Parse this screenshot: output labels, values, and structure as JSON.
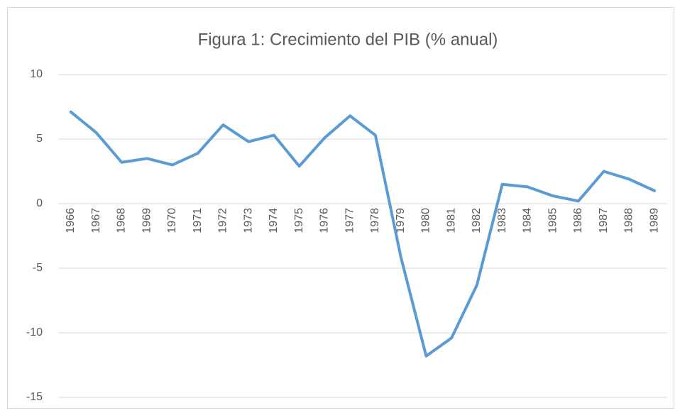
{
  "chart_data": {
    "type": "line",
    "title": "Figura 1: Crecimiento del PIB (% anual)",
    "categories": [
      "1966",
      "1967",
      "1968",
      "1969",
      "1970",
      "1971",
      "1972",
      "1973",
      "1974",
      "1975",
      "1976",
      "1977",
      "1978",
      "1979",
      "1980",
      "1981",
      "1982",
      "1983",
      "1984",
      "1985",
      "1986",
      "1987",
      "1988",
      "1989"
    ],
    "values": [
      7.1,
      5.5,
      3.2,
      3.5,
      3.0,
      3.9,
      6.1,
      4.8,
      5.3,
      2.9,
      5.1,
      6.8,
      5.3,
      -4.1,
      -11.8,
      -10.4,
      -6.3,
      1.5,
      1.3,
      0.6,
      0.2,
      2.5,
      1.9,
      1.0
    ],
    "color": "#5b9bd5",
    "ylim": [
      -15,
      10
    ],
    "yticks": [
      -15,
      -10,
      -5,
      0,
      5,
      10
    ],
    "grid": true
  }
}
